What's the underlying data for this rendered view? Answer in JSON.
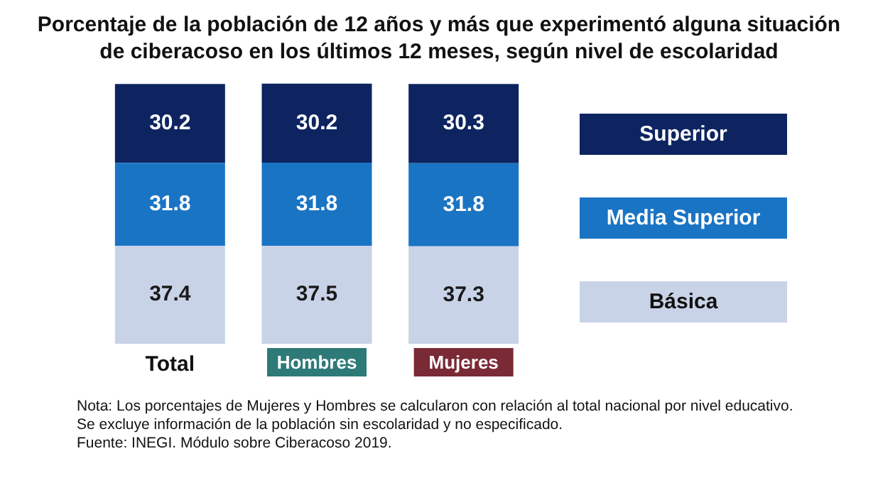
{
  "chart_data": {
    "type": "bar",
    "title": "Porcentaje de la población de 12 años y más que experimentó alguna situación de ciberacoso en los últimos 12 meses, según nivel de escolaridad",
    "categories": [
      "Total",
      "Hombres",
      "Mujeres"
    ],
    "stacked": true,
    "data_labels": true,
    "grid": false,
    "legend": "right",
    "tick_labels": "x",
    "series": [
      {
        "name": "Básica",
        "color": "#c9d3e8",
        "values": [
          37.4,
          37.5,
          37.3
        ]
      },
      {
        "name": "Media Superior",
        "color": "#1a74c4",
        "values": [
          31.8,
          31.8,
          31.8
        ]
      },
      {
        "name": "Superior",
        "color": "#0d2461",
        "values": [
          30.2,
          30.2,
          30.3
        ]
      }
    ],
    "annotations": [
      "Nota: Los porcentajes de Mujeres y Hombres se calcularon con relación al total nacional por nivel educativo.",
      "Se excluye información de la población sin escolaridad y no especificado.",
      "Fuente: INEGI. Módulo sobre Ciberacoso 2019."
    ]
  }
}
